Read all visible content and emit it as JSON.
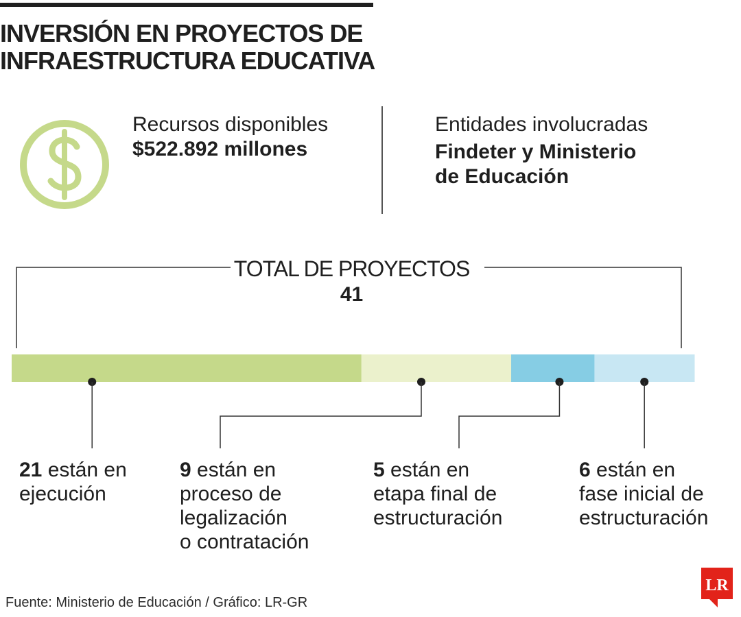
{
  "title": {
    "line1": "INVERSIÓN EN PROYECTOS DE",
    "line2": "INFRAESTRUCTURA EDUCATIVA"
  },
  "resources": {
    "icon": "dollar-icon",
    "label": "Recursos disponibles",
    "value": "$522.892 millones"
  },
  "entities": {
    "label": "Entidades involucradas",
    "value_line1": "Findeter y Ministerio",
    "value_line2": "de Educación"
  },
  "total": {
    "label": "TOTAL DE PROYECTOS",
    "value": "41"
  },
  "source": "Fuente: Ministerio de Educación / Gráfico: LR-GR",
  "logo": {
    "text": "LR",
    "color": "#e2231a"
  },
  "chart_data": {
    "type": "bar",
    "orientation": "horizontal-stacked",
    "total": 41,
    "segments": [
      {
        "value": 21,
        "value_text": "21",
        "line1": " están en",
        "line2": "ejecución",
        "line3": "",
        "line4": "",
        "color": "#c5d98a"
      },
      {
        "value": 9,
        "value_text": "9",
        "line1": " están en",
        "line2": "proceso de",
        "line3": "legalización",
        "line4": "o contratación",
        "color": "#ebf1cc"
      },
      {
        "value": 5,
        "value_text": "5",
        "line1": " están en",
        "line2": "etapa final de",
        "line3": "estructuración",
        "line4": "",
        "color": "#86cde4"
      },
      {
        "value": 6,
        "value_text": "6",
        "line1": " están en",
        "line2": "fase inicial de",
        "line3": "estructuración",
        "line4": "",
        "color": "#c8e7f3"
      }
    ]
  }
}
